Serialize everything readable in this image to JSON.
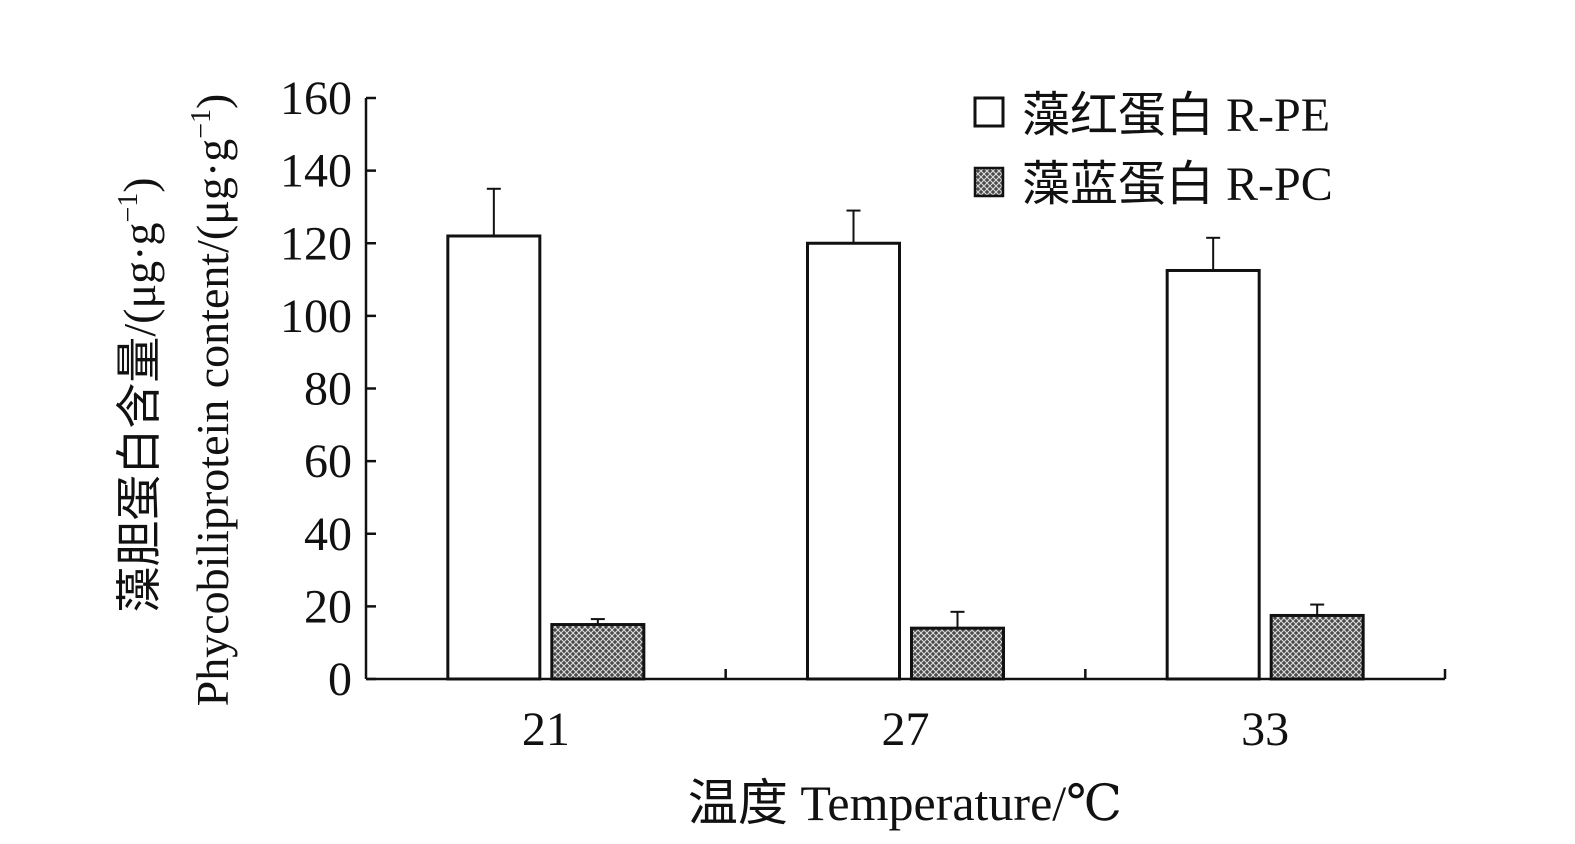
{
  "chart_data": {
    "type": "bar",
    "categories": [
      "21",
      "27",
      "33"
    ],
    "series": [
      {
        "name": "藻红蛋白 R-PE",
        "values": [
          122,
          120,
          112.5
        ],
        "errors": [
          13,
          9,
          9
        ],
        "fill": "#ffffff",
        "pattern": "none"
      },
      {
        "name": "藻蓝蛋白 R-PC",
        "values": [
          15,
          14,
          17.5
        ],
        "errors": [
          1.5,
          4.5,
          3
        ],
        "fill": "#555555",
        "pattern": "crosshatch"
      }
    ],
    "xlabel": "温度 Temperature/℃",
    "ylabel_line1": "藻胆蛋白含量/(μg·g",
    "ylabel_line1_sup": "−1",
    "ylabel_line1_end": ")",
    "ylabel_line2": "Phycobiliprotein content/(μg·g",
    "ylabel_line2_sup": "−1",
    "ylabel_line2_end": ")",
    "ylim": [
      0,
      160
    ],
    "yticks": [
      "0",
      "20",
      "40",
      "60",
      "80",
      "100",
      "120",
      "140",
      "160"
    ],
    "grid": false,
    "legend_position": "top-right"
  }
}
